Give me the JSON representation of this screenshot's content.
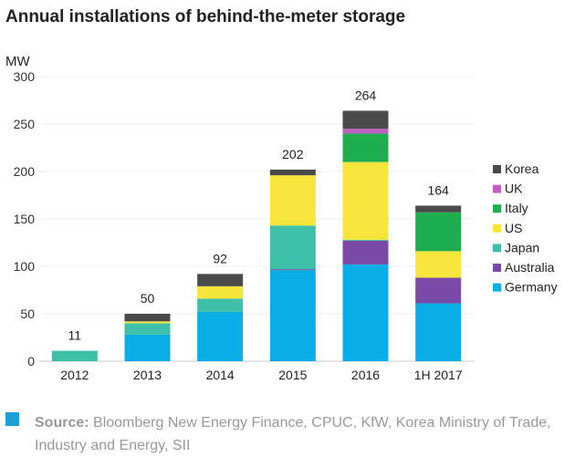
{
  "chart_data": {
    "type": "bar",
    "stacked": true,
    "title": "Annual installations of behind-the-meter storage",
    "ylabel": "MW",
    "xlabel": "",
    "ylim": [
      0,
      300
    ],
    "yticks": [
      0,
      50,
      100,
      150,
      200,
      250,
      300
    ],
    "categories": [
      "2012",
      "2013",
      "2014",
      "2015",
      "2016",
      "1H 2017"
    ],
    "totals": [
      11,
      50,
      92,
      202,
      264,
      164
    ],
    "legend_position": "right",
    "series": [
      {
        "name": "Germany",
        "color": "#0aaee6",
        "values": [
          0,
          28,
          52,
          96,
          102,
          61
        ]
      },
      {
        "name": "Australia",
        "color": "#7a4aa8",
        "values": [
          0,
          0,
          0,
          1,
          25,
          27
        ]
      },
      {
        "name": "Japan",
        "color": "#3dbfa8",
        "values": [
          11,
          12,
          14,
          46,
          1,
          0
        ]
      },
      {
        "name": "US",
        "color": "#f7e53b",
        "values": [
          0,
          2,
          13,
          53,
          82,
          28
        ]
      },
      {
        "name": "Italy",
        "color": "#1fae4f",
        "values": [
          0,
          0,
          0,
          0,
          30,
          41
        ]
      },
      {
        "name": "UK",
        "color": "#c060c0",
        "values": [
          0,
          0,
          0,
          0,
          5,
          0
        ]
      },
      {
        "name": "Korea",
        "color": "#4a4a4a",
        "values": [
          0,
          8,
          13,
          6,
          19,
          7
        ]
      }
    ]
  },
  "source": {
    "label": "Source:",
    "text": "Bloomberg New Energy Finance, CPUC, KfW, Korea Ministry of Trade, Industry and Energy, SII"
  }
}
